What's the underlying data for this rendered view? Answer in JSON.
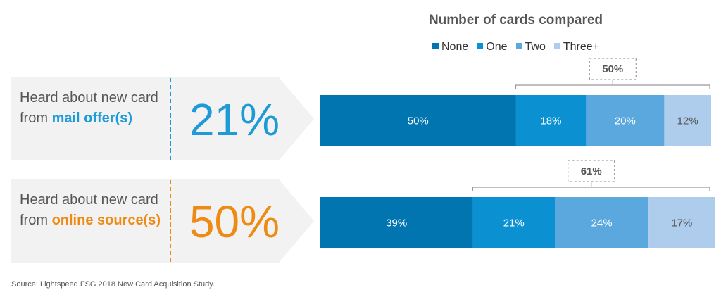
{
  "legend": {
    "title": "Number of cards compared",
    "items": [
      {
        "label": "None",
        "color": "#0075B0"
      },
      {
        "label": "One",
        "color": "#0B90D2"
      },
      {
        "label": "Two",
        "color": "#5BA8DF"
      },
      {
        "label": "Three+",
        "color": "#AECCEB"
      }
    ]
  },
  "rows": [
    {
      "label_pre": "Heard about new card from ",
      "label_highlight": "mail offer(s)",
      "percentage": "21%",
      "accent_color": "#1E9BD7"
    },
    {
      "label_pre": "Heard about new card from ",
      "label_highlight": "online source(s)",
      "percentage": "50%",
      "accent_color": "#EE8B15"
    }
  ],
  "chart_data": {
    "type": "bar",
    "orientation": "horizontal",
    "stacked": true,
    "percent_scale": [
      0,
      100
    ],
    "categories": [
      "Heard about new card from mail offer(s)",
      "Heard about new card from online source(s)"
    ],
    "series": [
      {
        "name": "None",
        "values": [
          50,
          39
        ],
        "labels": [
          "50%",
          "39%"
        ]
      },
      {
        "name": "One",
        "values": [
          18,
          21
        ],
        "labels": [
          "18%",
          "21%"
        ]
      },
      {
        "name": "Two",
        "values": [
          20,
          24
        ],
        "labels": [
          "20%",
          "24%"
        ]
      },
      {
        "name": "Three+",
        "values": [
          12,
          17
        ],
        "labels": [
          "12%",
          "17%"
        ]
      }
    ],
    "annotations": [
      {
        "row": 0,
        "label": "50%",
        "spans": [
          "One",
          "Two",
          "Three+"
        ],
        "value": 50
      },
      {
        "row": 1,
        "label": "61%",
        "spans": [
          "One",
          "Two",
          "Three+"
        ],
        "value": 61
      }
    ],
    "legend_position": "top"
  },
  "source": "Source: Lightspeed FSG 2018 New Card Acquisition Study."
}
